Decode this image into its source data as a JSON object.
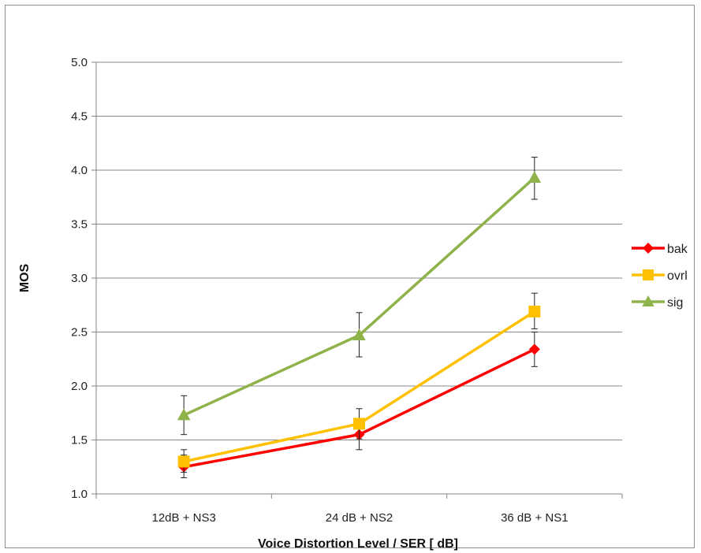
{
  "chart_data": {
    "type": "line",
    "title": "",
    "xlabel": "Voice Distortion Level / SER [ dB]",
    "ylabel": "MOS",
    "categories": [
      "12dB + NS3",
      "24 dB + NS2",
      "36 dB + NS1"
    ],
    "ylim": [
      1.0,
      5.0
    ],
    "yticks": [
      "1.0",
      "1.5",
      "2.0",
      "2.5",
      "3.0",
      "3.5",
      "4.0",
      "4.5",
      "5.0"
    ],
    "grid": "horizontal",
    "legend_position": "right",
    "series": [
      {
        "name": "bak",
        "values": [
          1.25,
          1.55,
          2.34
        ],
        "err_low": [
          1.15,
          1.41,
          2.18
        ],
        "err_high": [
          1.36,
          1.69,
          2.5
        ],
        "color": "#ff0000",
        "marker": "diamond"
      },
      {
        "name": "ovrl",
        "values": [
          1.3,
          1.65,
          2.69
        ],
        "err_low": [
          1.2,
          1.51,
          2.53
        ],
        "err_high": [
          1.41,
          1.79,
          2.86
        ],
        "color": "#ffc000",
        "marker": "square"
      },
      {
        "name": "sig",
        "values": [
          1.73,
          2.47,
          3.93
        ],
        "err_low": [
          1.55,
          2.27,
          3.73
        ],
        "err_high": [
          1.91,
          2.68,
          4.12
        ],
        "color": "#8fb34a",
        "marker": "triangle"
      }
    ]
  }
}
